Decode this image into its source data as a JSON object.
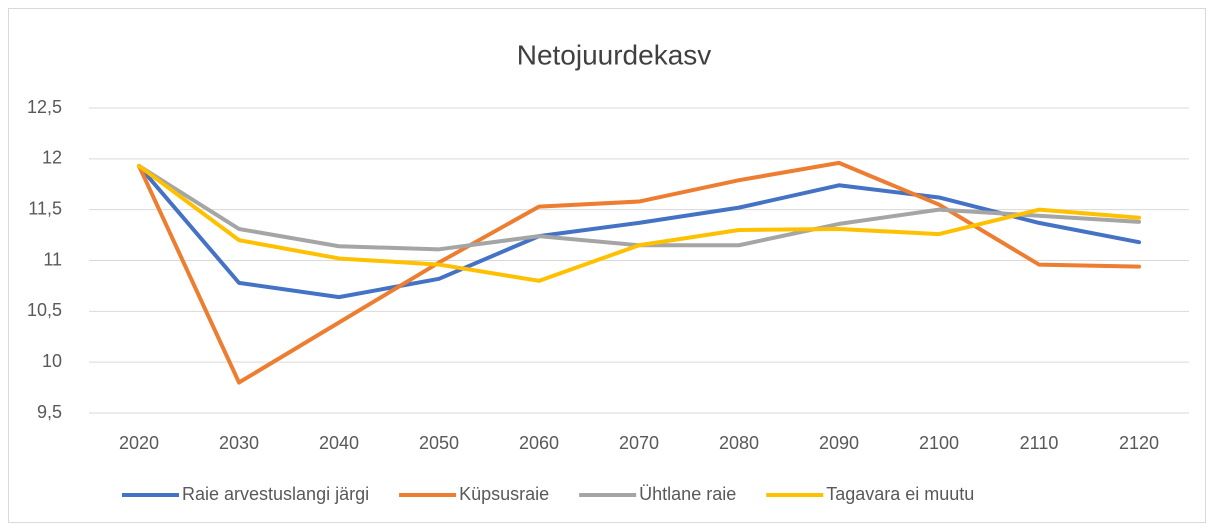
{
  "chart_data": {
    "type": "line",
    "title": "Netojuurdekasv",
    "categories": [
      "2020",
      "2030",
      "2040",
      "2050",
      "2060",
      "2070",
      "2080",
      "2090",
      "2100",
      "2110",
      "2120"
    ],
    "series": [
      {
        "name": "Raie arvestuslangi järgi",
        "color": "#4472c4",
        "values": [
          11.93,
          10.78,
          10.64,
          10.82,
          11.24,
          11.37,
          11.52,
          11.74,
          11.62,
          11.37,
          11.18
        ]
      },
      {
        "name": "Küpsusraie",
        "color": "#ed7d31",
        "values": [
          11.93,
          9.8,
          10.39,
          10.98,
          11.53,
          11.58,
          11.79,
          11.96,
          11.55,
          10.96,
          10.94
        ]
      },
      {
        "name": "Ühtlane raie",
        "color": "#a5a5a5",
        "values": [
          11.93,
          11.31,
          11.14,
          11.11,
          11.24,
          11.15,
          11.15,
          11.36,
          11.5,
          11.44,
          11.38
        ]
      },
      {
        "name": "Tagavara ei muutu",
        "color": "#ffc000",
        "values": [
          11.93,
          11.2,
          11.02,
          10.96,
          10.8,
          11.15,
          11.3,
          11.31,
          11.26,
          11.5,
          11.42
        ]
      }
    ],
    "ylim": [
      9.5,
      12.5
    ],
    "yticks": [
      {
        "value": 9.5,
        "label": "9,5"
      },
      10,
      {
        "value": 10.5,
        "label": "10,5"
      },
      11,
      {
        "value": 11.5,
        "label": "11,5"
      },
      12,
      {
        "value": 12.5,
        "label": "12,5"
      }
    ],
    "grid": true,
    "legend": "bottom"
  }
}
